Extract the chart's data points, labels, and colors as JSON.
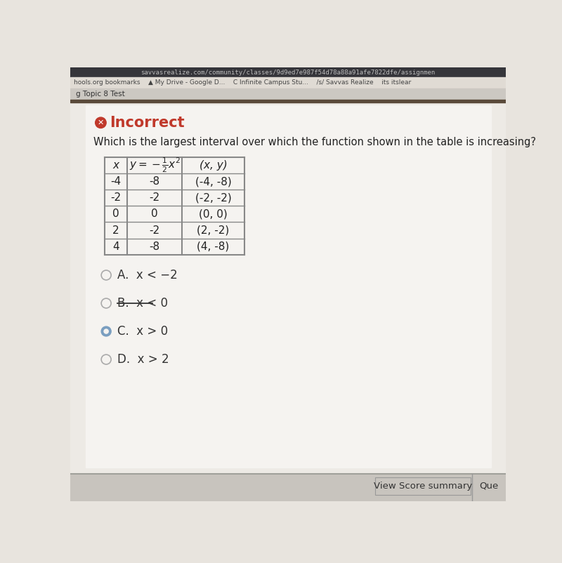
{
  "browser_bar_text": "savvasrealize.com/community/classes/9d9ed7e987f54d78a88a91afe7822dfe/assignmen",
  "bookmarks_text": "hools.org bookmarks    ▲ My Drive - Google D...    C Infinite Campus Stu...    /s/ Savvas Realize    its itslear",
  "tab_text": "g Topic 8 Test",
  "incorrect_label": "Incorrect",
  "question_text": "Which is the largest interval over which the function shown in the table is increasing?",
  "table_col1": [
    "-4",
    "-2",
    "0",
    "2",
    "4"
  ],
  "table_col2": [
    "-8",
    "-2",
    "0",
    "-2",
    "-8"
  ],
  "table_col3": [
    "(-4, -8)",
    "(-2, -2)",
    "(0, 0)",
    "(2, -2)",
    "(4, -8)"
  ],
  "choices": [
    "A.  x < −2",
    "B.  x < 0",
    "C.  x > 0",
    "D.  x > 2"
  ],
  "selected_choice_index": 2,
  "strikethrough_choice": 1,
  "bg_main": "#e8e4de",
  "bg_content": "#edeae5",
  "bg_white_panel": "#f5f3f0",
  "browser_bar_bg": "#35353a",
  "bookmarks_bar_bg": "#e0dbd4",
  "tab_bar_bg": "#ccc8c2",
  "separator_color": "#8a8680",
  "dark_separator": "#5a4a3a",
  "incorrect_red": "#c0392b",
  "table_border": "#888888",
  "text_dark": "#222222",
  "text_choice": "#333333",
  "radio_selected_fill": "#7a9ec0",
  "radio_selected_inner": "#f5f3f0",
  "radio_unselected_edge": "#aaaaaa",
  "bottom_bar_bg": "#c8c4be",
  "view_score_text": "View Score summary",
  "que_text": "Que"
}
